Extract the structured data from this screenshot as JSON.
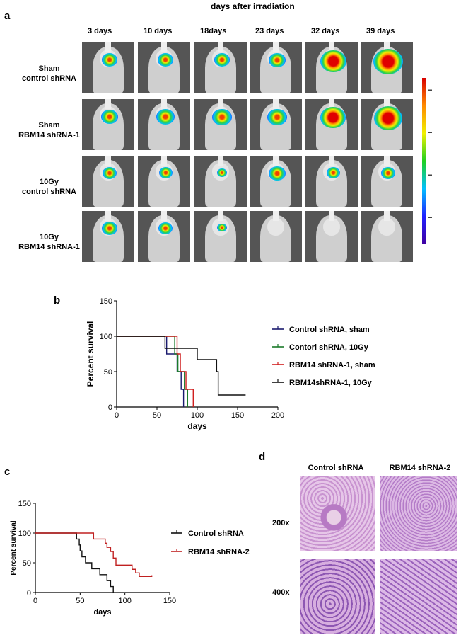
{
  "panel_a": {
    "letter": "a",
    "header": "days after irradiation",
    "days": [
      "3 days",
      "10 days",
      "18days",
      "23 days",
      "32 days",
      "39 days"
    ],
    "rows": [
      {
        "line1": "Sham",
        "line2": "control shRNA",
        "signal": [
          0.35,
          0.35,
          0.35,
          0.4,
          0.75,
          0.9
        ]
      },
      {
        "line1": "Sham",
        "line2": "RBM14 shRNA-1",
        "signal": [
          0.4,
          0.45,
          0.5,
          0.5,
          0.7,
          0.85
        ]
      },
      {
        "line1": "10Gy",
        "line2": "control shRNA",
        "signal": [
          0.3,
          0.25,
          0.12,
          0.4,
          0.25,
          0.3
        ]
      },
      {
        "line1": "10Gy",
        "line2": "RBM14 shRNA-1",
        "signal": [
          0.35,
          0.3,
          0.1,
          0,
          0,
          0
        ]
      }
    ],
    "colorbar": {
      "colors": [
        "#d80000",
        "#ff8a00",
        "#f0f000",
        "#20d020",
        "#00c0ff",
        "#2020ff",
        "#4000a0"
      ]
    }
  },
  "panel_b": {
    "letter": "b",
    "chart_data": {
      "type": "line",
      "ylabel": "Percent survival",
      "xlabel": "days",
      "xlim": [
        0,
        200
      ],
      "ylim": [
        0,
        150
      ],
      "xticks": [
        0,
        50,
        100,
        150,
        200
      ],
      "yticks": [
        0,
        50,
        100,
        150
      ],
      "series": [
        {
          "name": "Control shRNA, sham",
          "color": "#1a1a6e",
          "steps": [
            [
              0,
              100
            ],
            [
              62,
              100
            ],
            [
              62,
              75
            ],
            [
              75,
              75
            ],
            [
              75,
              50
            ],
            [
              80,
              50
            ],
            [
              80,
              25
            ],
            [
              83,
              25
            ],
            [
              83,
              0
            ]
          ],
          "end": 83
        },
        {
          "name": "Contorl shRNA, 10Gy",
          "color": "#1a7a2a",
          "steps": [
            [
              0,
              100
            ],
            [
              72,
              100
            ],
            [
              72,
              75
            ],
            [
              76,
              75
            ],
            [
              76,
              50
            ],
            [
              84,
              50
            ],
            [
              84,
              25
            ],
            [
              88,
              25
            ],
            [
              88,
              0
            ]
          ],
          "end": 88
        },
        {
          "name": "RBM14 shRNA-1, sham",
          "color": "#d02020",
          "steps": [
            [
              0,
              100
            ],
            [
              75,
              100
            ],
            [
              75,
              75
            ],
            [
              79,
              75
            ],
            [
              79,
              50
            ],
            [
              86,
              50
            ],
            [
              86,
              25
            ],
            [
              95,
              25
            ],
            [
              95,
              0
            ]
          ],
          "end": 95
        },
        {
          "name": "RBM14shRNA-1, 10Gy",
          "color": "#111111",
          "steps": [
            [
              0,
              100
            ],
            [
              60,
              100
            ],
            [
              60,
              83
            ],
            [
              100,
              83
            ],
            [
              100,
              67
            ],
            [
              124,
              67
            ],
            [
              124,
              50
            ],
            [
              126,
              50
            ],
            [
              126,
              17
            ],
            [
              160,
              17
            ]
          ],
          "end": 160
        }
      ]
    }
  },
  "panel_c": {
    "letter": "c",
    "chart_data": {
      "type": "line",
      "ylabel": "Percent survival",
      "xlabel": "days",
      "xlim": [
        0,
        150
      ],
      "ylim": [
        0,
        150
      ],
      "xticks": [
        0,
        50,
        100,
        150
      ],
      "yticks": [
        0,
        50,
        100,
        150
      ],
      "series": [
        {
          "name": "Control shRNA",
          "color": "#111111",
          "steps": [
            [
              0,
              100
            ],
            [
              46,
              100
            ],
            [
              46,
              90
            ],
            [
              49,
              90
            ],
            [
              49,
              80
            ],
            [
              50,
              80
            ],
            [
              50,
              70
            ],
            [
              52,
              70
            ],
            [
              52,
              60
            ],
            [
              56,
              60
            ],
            [
              56,
              50
            ],
            [
              63,
              50
            ],
            [
              63,
              40
            ],
            [
              72,
              40
            ],
            [
              72,
              30
            ],
            [
              80,
              30
            ],
            [
              80,
              20
            ],
            [
              84,
              20
            ],
            [
              84,
              10
            ],
            [
              87,
              10
            ],
            [
              87,
              0
            ]
          ],
          "end": 87
        },
        {
          "name": "RBM14 shRNA-2",
          "color": "#c02020",
          "steps": [
            [
              0,
              100
            ],
            [
              65,
              100
            ],
            [
              65,
              90
            ],
            [
              78,
              90
            ],
            [
              78,
              83
            ],
            [
              80,
              83
            ],
            [
              80,
              76
            ],
            [
              84,
              76
            ],
            [
              84,
              69
            ],
            [
              87,
              69
            ],
            [
              87,
              58
            ],
            [
              90,
              58
            ],
            [
              90,
              46
            ],
            [
              108,
              46
            ],
            [
              108,
              39
            ],
            [
              112,
              39
            ],
            [
              112,
              33
            ],
            [
              116,
              33
            ],
            [
              116,
              27
            ],
            [
              130,
              27
            ],
            [
              130,
              29
            ]
          ],
          "end": 130
        }
      ]
    }
  },
  "panel_d": {
    "letter": "d",
    "col1": "Control shRNA",
    "col2": "RBM14 shRNA-2",
    "row1": "200x",
    "row2": "400x"
  }
}
